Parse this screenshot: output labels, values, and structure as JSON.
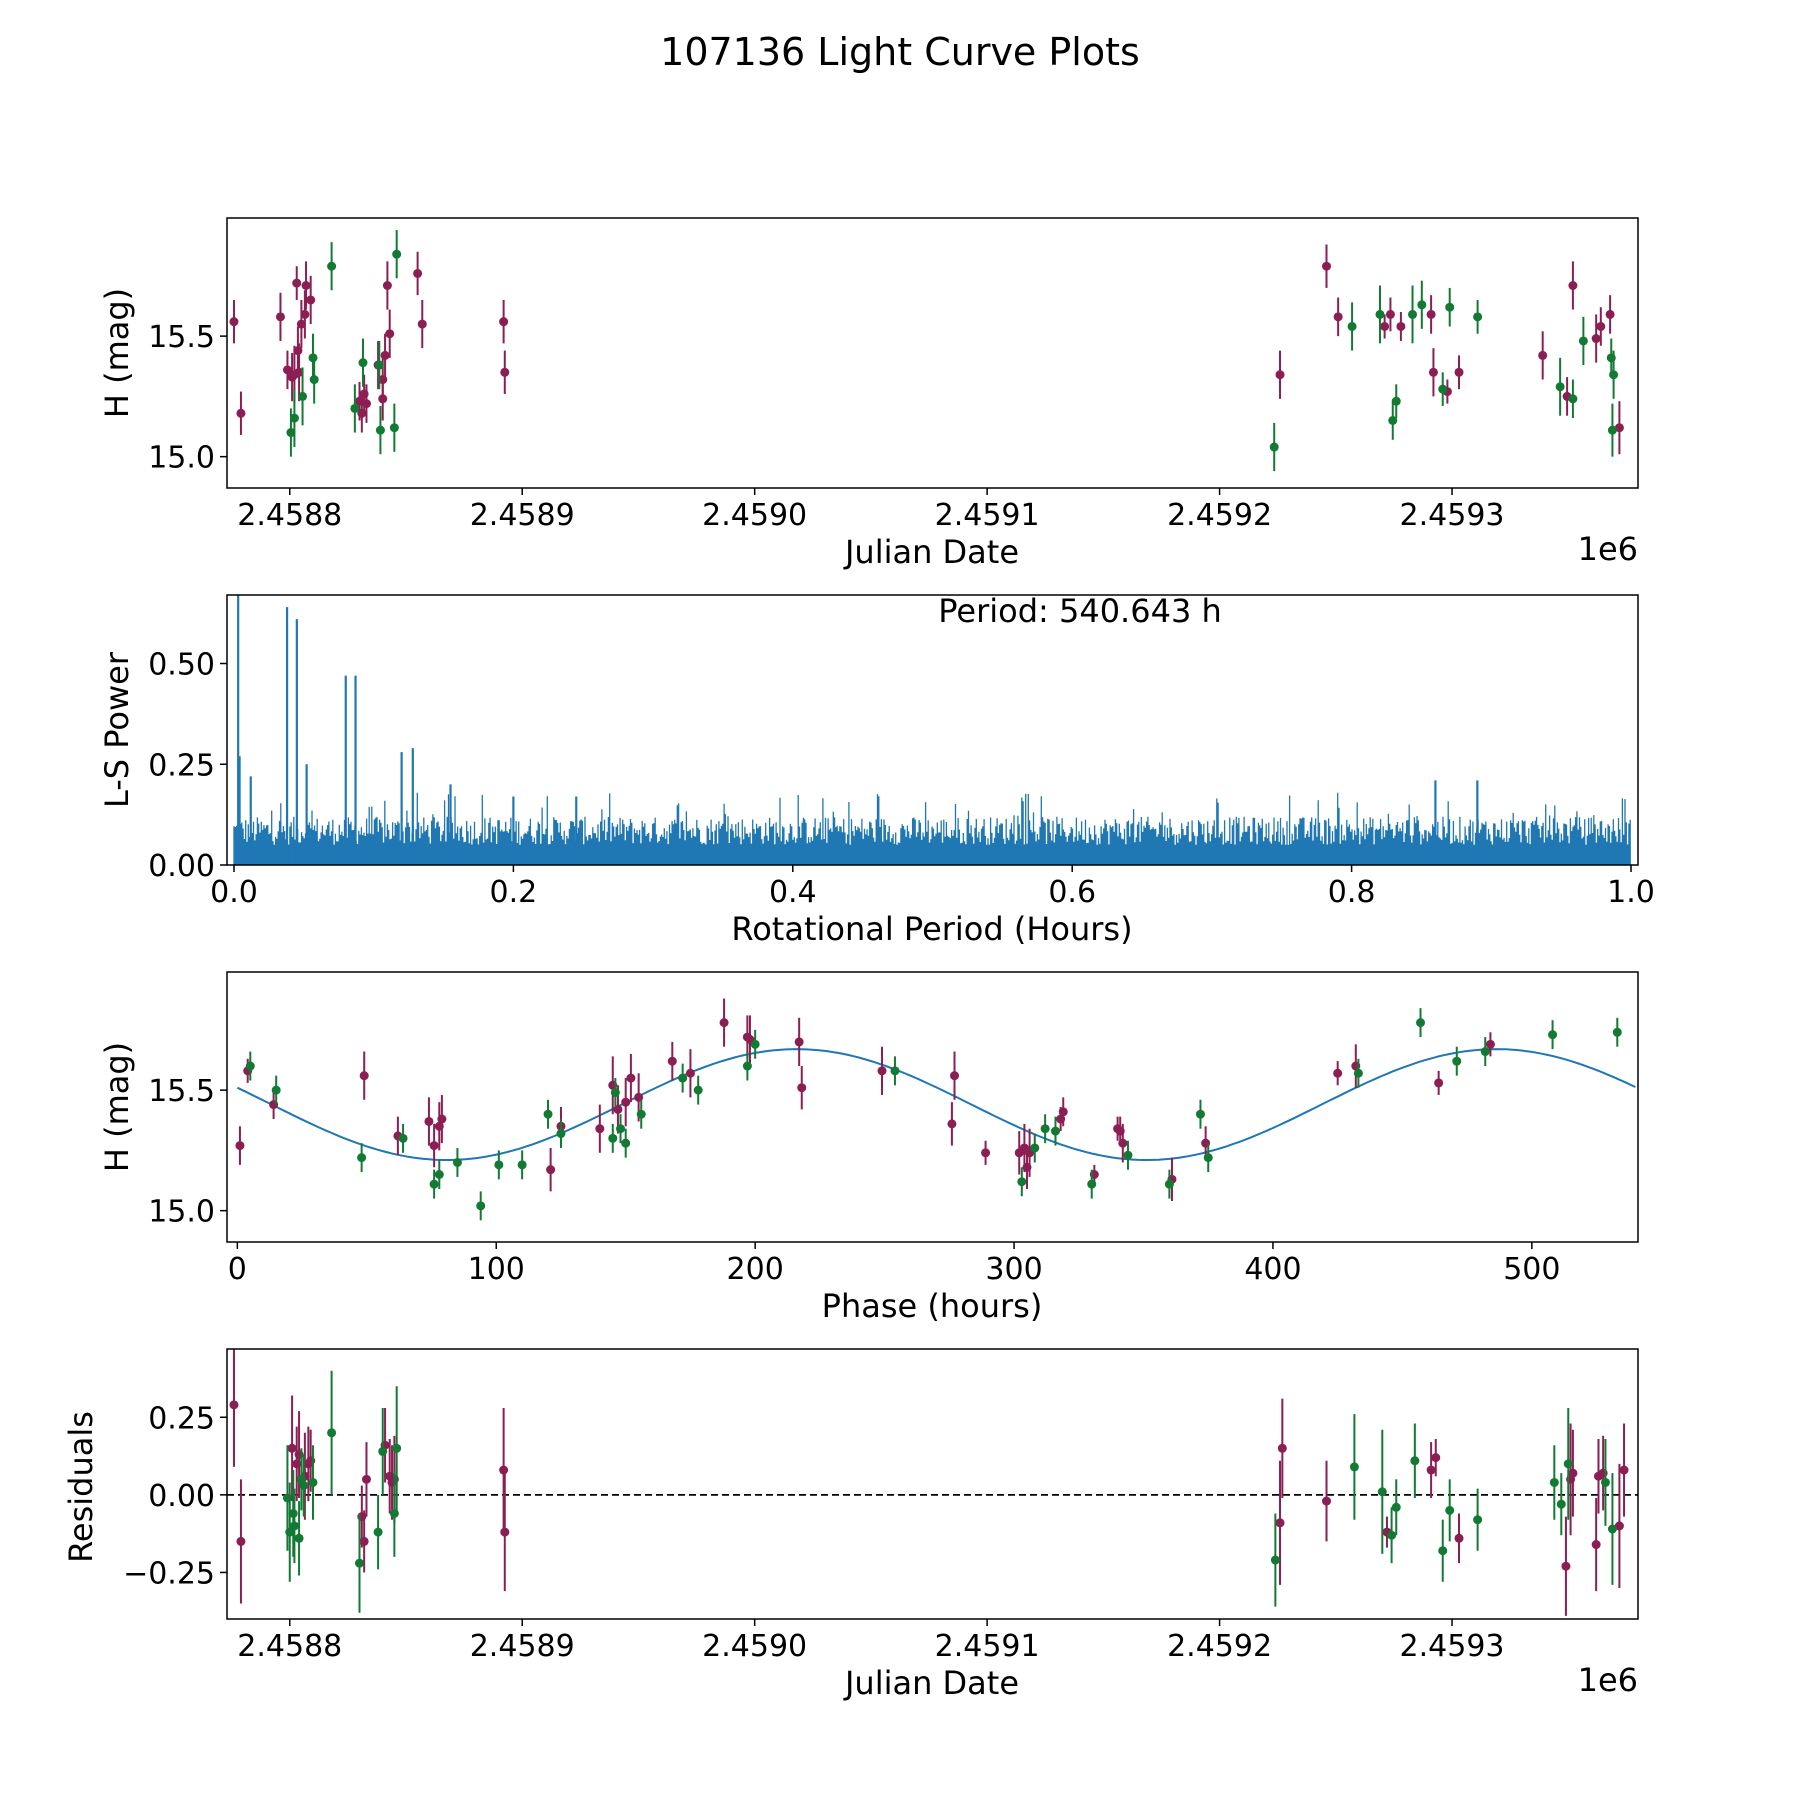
{
  "figure_title": "107136 Light Curve Plots",
  "colors": {
    "series_a": "#8b1e52",
    "series_b": "#137a34",
    "periodogram": "#1f77b4",
    "fit_curve": "#1f77b4",
    "zero_line": "#000000",
    "axes": "#000000"
  },
  "chart_data": [
    {
      "id": "lightcurve",
      "type": "scatter",
      "title": "",
      "xlabel": "Julian Date",
      "ylabel": "H (mag)",
      "x_offset_label": "1e6",
      "xlim": [
        2458773,
        2459380
      ],
      "ylim": [
        14.87,
        15.99
      ],
      "xticks": [
        2458800,
        2458900,
        2459000,
        2459100,
        2459200,
        2459300
      ],
      "xtick_labels": [
        "2.4588",
        "2.4589",
        "2.4590",
        "2.4591",
        "2.4592",
        "2.4593"
      ],
      "yticks": [
        15.0,
        15.5
      ],
      "ytick_labels": [
        "15.0",
        "15.5"
      ],
      "series": [
        {
          "name": "maroon",
          "x": [
            2458776,
            2458779,
            2458801,
            2458804,
            2458806.5,
            2458803,
            2458842,
            2458832,
            2458830,
            2458840,
            2458796,
            2458802,
            2458803.5,
            2458805,
            2458807,
            2458809,
            2458838,
            2458840,
            2458841,
            2458843,
            2458855,
            2458857,
            2458799,
            2458831,
            2458833,
            2458892,
            2458892.5
          ],
          "y": [
            15.56,
            15.18,
            15.33,
            15.35,
            15.59,
            15.72,
            15.71,
            15.26,
            15.23,
            15.32,
            15.58,
            15.34,
            15.44,
            15.55,
            15.71,
            15.65,
            15.38,
            15.24,
            15.42,
            15.51,
            15.76,
            15.55,
            15.36,
            15.18,
            15.22,
            15.56,
            15.35
          ],
          "err": [
            0.09,
            0.09,
            0.1,
            0.12,
            0.1,
            0.07,
            0.1,
            0.08,
            0.08,
            0.1,
            0.1,
            0.12,
            0.1,
            0.1,
            0.1,
            0.1,
            0.1,
            0.09,
            0.09,
            0.1,
            0.09,
            0.1,
            0.08,
            0.08,
            0.08,
            0.09,
            0.09
          ]
        },
        {
          "name": "green",
          "x": [
            2458800.5,
            2458802,
            2458805.5,
            2458810,
            2458839,
            2458838.5,
            2458846,
            2458828,
            2458831.5,
            2458810.5,
            2458818,
            2458845
          ],
          "y": [
            15.1,
            15.16,
            15.25,
            15.41,
            15.11,
            15.38,
            15.84,
            15.2,
            15.39,
            15.32,
            15.79,
            15.12
          ],
          "err": [
            0.1,
            0.12,
            0.12,
            0.1,
            0.1,
            0.1,
            0.1,
            0.1,
            0.1,
            0.1,
            0.1,
            0.1
          ]
        },
        {
          "name": "maroon-2",
          "x": [
            2459226,
            2459246,
            2459251,
            2459271,
            2459273.5,
            2459278,
            2459292,
            2459291,
            2459298,
            2459303,
            2459339,
            2459349.5,
            2459352,
            2459362,
            2459364,
            2459368,
            2459372
          ],
          "y": [
            15.34,
            15.79,
            15.58,
            15.54,
            15.59,
            15.54,
            15.35,
            15.59,
            15.27,
            15.35,
            15.42,
            15.25,
            15.71,
            15.49,
            15.54,
            15.59,
            15.12
          ],
          "err": [
            0.1,
            0.09,
            0.08,
            0.05,
            0.07,
            0.06,
            0.1,
            0.08,
            0.05,
            0.07,
            0.1,
            0.08,
            0.1,
            0.1,
            0.08,
            0.08,
            0.11
          ]
        },
        {
          "name": "green-2",
          "x": [
            2459223.5,
            2459257,
            2459269,
            2459274.5,
            2459276,
            2459283,
            2459287,
            2459296,
            2459299,
            2459311,
            2459346.5,
            2459352,
            2459356.5,
            2459368.5,
            2459369.5,
            2459369
          ],
          "y": [
            15.04,
            15.54,
            15.59,
            15.15,
            15.23,
            15.59,
            15.63,
            15.28,
            15.62,
            15.58,
            15.29,
            15.24,
            15.48,
            15.41,
            15.34,
            15.11
          ],
          "err": [
            0.1,
            0.1,
            0.12,
            0.08,
            0.07,
            0.12,
            0.1,
            0.07,
            0.08,
            0.07,
            0.12,
            0.08,
            0.1,
            0.08,
            0.1,
            0.11
          ]
        }
      ]
    },
    {
      "id": "periodogram",
      "type": "line",
      "title": "",
      "annotation": "Period: 540.643 h",
      "xlabel": "Rotational Period (Hours)",
      "ylabel": "L-S Power",
      "xlim": [
        -0.005,
        1.005
      ],
      "ylim": [
        0,
        0.67
      ],
      "xticks": [
        0.0,
        0.2,
        0.4,
        0.6,
        0.8,
        1.0
      ],
      "xtick_labels": [
        "0.0",
        "0.2",
        "0.4",
        "0.6",
        "0.8",
        "1.0"
      ],
      "yticks": [
        0.0,
        0.25,
        0.5
      ],
      "ytick_labels": [
        "0.00",
        "0.25",
        "0.50"
      ],
      "peaks": [
        {
          "x": 0.003,
          "y": 0.67
        },
        {
          "x": 0.004,
          "y": 0.27
        },
        {
          "x": 0.012,
          "y": 0.22
        },
        {
          "x": 0.038,
          "y": 0.64
        },
        {
          "x": 0.045,
          "y": 0.61
        },
        {
          "x": 0.052,
          "y": 0.25
        },
        {
          "x": 0.08,
          "y": 0.47
        },
        {
          "x": 0.087,
          "y": 0.47
        },
        {
          "x": 0.12,
          "y": 0.28
        },
        {
          "x": 0.128,
          "y": 0.29
        },
        {
          "x": 0.155,
          "y": 0.2
        },
        {
          "x": 0.2,
          "y": 0.17
        },
        {
          "x": 0.245,
          "y": 0.17
        },
        {
          "x": 0.86,
          "y": 0.21
        },
        {
          "x": 0.89,
          "y": 0.21
        }
      ],
      "baseline_noise": {
        "low": 0.05,
        "high": 0.12,
        "spike_max": 0.18
      }
    },
    {
      "id": "phased",
      "type": "scatter",
      "title": "",
      "xlabel": "Phase (hours)",
      "ylabel": "H (mag)",
      "xlim": [
        -4,
        541
      ],
      "ylim": [
        14.87,
        15.99
      ],
      "xticks": [
        0,
        100,
        200,
        300,
        400,
        500
      ],
      "xtick_labels": [
        "0",
        "100",
        "200",
        "300",
        "400",
        "500"
      ],
      "yticks": [
        15.0,
        15.5
      ],
      "ytick_labels": [
        "15.0",
        "15.5"
      ],
      "fit": {
        "mean": 15.44,
        "amplitude": 0.23,
        "period": 270.3,
        "peak_phase": 216,
        "x_range": [
          0,
          541
        ]
      },
      "series": [
        {
          "name": "maroon",
          "x": [
            1,
            4,
            14,
            49,
            62,
            74,
            76,
            78,
            79,
            121,
            125,
            140,
            145,
            147,
            150,
            152,
            155,
            168,
            175,
            188,
            197,
            198,
            217,
            218,
            249,
            276,
            277,
            289,
            302,
            304,
            305,
            306,
            318,
            319,
            340,
            341,
            342,
            331,
            361,
            374,
            425,
            432,
            464,
            484
          ],
          "y": [
            15.27,
            15.58,
            15.44,
            15.56,
            15.31,
            15.37,
            15.27,
            15.35,
            15.38,
            15.17,
            15.35,
            15.34,
            15.52,
            15.42,
            15.45,
            15.55,
            15.47,
            15.62,
            15.57,
            15.78,
            15.72,
            15.71,
            15.7,
            15.51,
            15.58,
            15.36,
            15.56,
            15.24,
            15.24,
            15.26,
            15.18,
            15.24,
            15.38,
            15.41,
            15.34,
            15.33,
            15.28,
            15.15,
            15.13,
            15.28,
            15.57,
            15.6,
            15.53,
            15.69
          ],
          "err": [
            0.08,
            0.05,
            0.06,
            0.1,
            0.08,
            0.1,
            0.09,
            0.1,
            0.1,
            0.09,
            0.08,
            0.1,
            0.12,
            0.1,
            0.1,
            0.1,
            0.1,
            0.08,
            0.1,
            0.1,
            0.09,
            0.1,
            0.1,
            0.09,
            0.1,
            0.09,
            0.1,
            0.05,
            0.09,
            0.1,
            0.09,
            0.1,
            0.05,
            0.06,
            0.05,
            0.06,
            0.08,
            0.04,
            0.09,
            0.07,
            0.05,
            0.09,
            0.05,
            0.05
          ]
        },
        {
          "name": "green",
          "x": [
            5,
            15,
            48,
            64,
            76,
            78,
            85,
            94,
            101,
            110,
            120,
            125,
            145,
            146,
            148,
            150,
            156,
            172,
            178,
            197,
            200,
            254,
            303,
            308,
            312,
            316,
            330,
            344,
            360,
            372,
            375,
            433,
            457,
            471,
            482,
            508,
            533
          ],
          "y": [
            15.6,
            15.5,
            15.22,
            15.3,
            15.11,
            15.15,
            15.2,
            15.02,
            15.19,
            15.19,
            15.4,
            15.32,
            15.3,
            15.49,
            15.34,
            15.28,
            15.4,
            15.55,
            15.5,
            15.6,
            15.69,
            15.58,
            15.12,
            15.26,
            15.34,
            15.33,
            15.11,
            15.23,
            15.11,
            15.4,
            15.22,
            15.57,
            15.78,
            15.62,
            15.66,
            15.73,
            15.74
          ]
        }
      ]
    },
    {
      "id": "residuals",
      "type": "scatter",
      "title": "",
      "xlabel": "Julian Date",
      "ylabel": "Residuals",
      "x_offset_label": "1e6",
      "xlim": [
        2458773,
        2459380
      ],
      "ylim": [
        -0.4,
        0.47
      ],
      "xticks": [
        2458800,
        2458900,
        2459000,
        2459100,
        2459200,
        2459300
      ],
      "xtick_labels": [
        "2.4588",
        "2.4589",
        "2.4590",
        "2.4591",
        "2.4592",
        "2.4593"
      ],
      "yticks": [
        -0.25,
        0.0,
        0.25
      ],
      "ytick_labels": [
        "−0.25",
        "0.00",
        "0.25"
      ],
      "zero_line": true,
      "series": [
        {
          "name": "maroon",
          "x": [
            2458776,
            2458779,
            2458801,
            2458804,
            2458806.5,
            2458803,
            2458808,
            2458809,
            2458831,
            2458832,
            2458833,
            2458841,
            2458843,
            2458844,
            2458845,
            2458892,
            2458892.5,
            2459226,
            2459227,
            2459246,
            2459272,
            2459291,
            2459293,
            2459303,
            2459349,
            2459351,
            2459352,
            2459362,
            2459363,
            2459365,
            2459372,
            2459374
          ],
          "y": [
            0.29,
            -0.15,
            0.15,
            0.13,
            0.06,
            0.1,
            0.1,
            0.11,
            -0.07,
            -0.15,
            0.05,
            0.16,
            0.06,
            0.04,
            0.05,
            0.08,
            -0.12,
            -0.09,
            0.15,
            -0.02,
            -0.12,
            0.08,
            0.12,
            -0.14,
            -0.23,
            0.05,
            0.07,
            -0.16,
            0.06,
            0.07,
            -0.1,
            0.08
          ],
          "err": [
            0.2,
            0.2,
            0.17,
            0.14,
            0.14,
            0.12,
            0.12,
            0.1,
            0.1,
            0.1,
            0.12,
            0.12,
            0.12,
            0.12,
            0.14,
            0.2,
            0.19,
            0.2,
            0.16,
            0.13,
            0.05,
            0.09,
            0.06,
            0.08,
            0.16,
            0.18,
            0.14,
            0.15,
            0.12,
            0.12,
            0.2,
            0.15
          ]
        },
        {
          "name": "green",
          "x": [
            2458799,
            2458801.5,
            2458800,
            2458802,
            2458804,
            2458805,
            2458806,
            2458810,
            2458818,
            2458830,
            2458838,
            2458840,
            2458845,
            2458846,
            2459224,
            2459258,
            2459270,
            2459274,
            2459276,
            2459284,
            2459296,
            2459299,
            2459311,
            2459344,
            2459347,
            2459350,
            2459366,
            2459369
          ],
          "y": [
            -0.01,
            -0.06,
            -0.12,
            -0.1,
            -0.14,
            0.05,
            0.03,
            0.04,
            0.2,
            -0.22,
            -0.12,
            0.14,
            -0.06,
            0.15,
            -0.21,
            0.09,
            0.01,
            -0.13,
            -0.04,
            0.11,
            -0.18,
            -0.05,
            -0.08,
            0.04,
            -0.03,
            0.1,
            0.04,
            -0.11
          ],
          "err": [
            0.17,
            0.14,
            0.16,
            0.12,
            0.12,
            0.1,
            0.1,
            0.12,
            0.2,
            0.16,
            0.12,
            0.14,
            0.14,
            0.2,
            0.15,
            0.17,
            0.2,
            0.09,
            0.09,
            0.12,
            0.1,
            0.1,
            0.1,
            0.12,
            0.1,
            0.18,
            0.14,
            0.18
          ]
        }
      ]
    }
  ]
}
